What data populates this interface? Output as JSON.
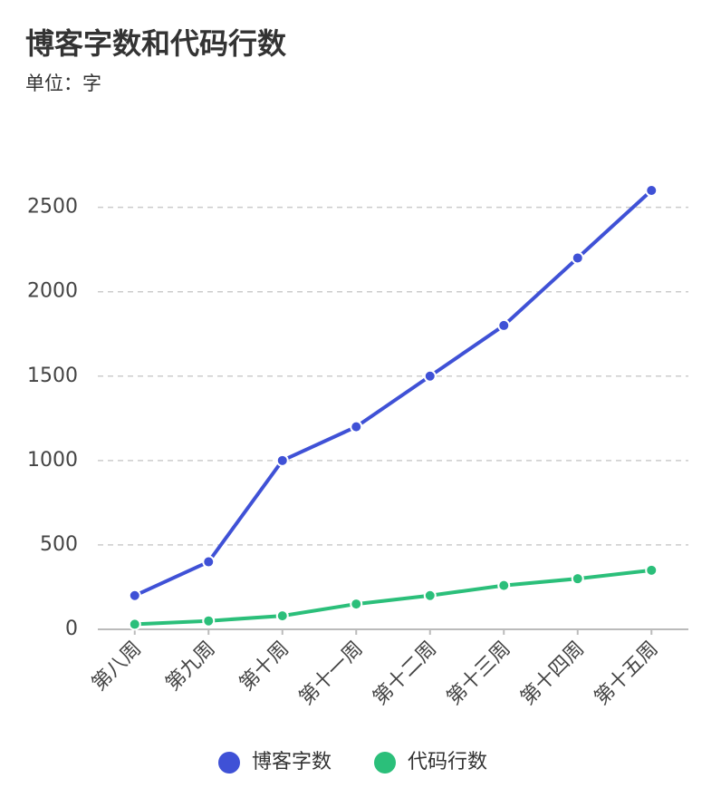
{
  "chart_data": {
    "type": "line",
    "title": "博客字数和代码行数",
    "subtitle": "单位：字",
    "categories": [
      "第八周",
      "第九周",
      "第十周",
      "第十一周",
      "第十二周",
      "第十三周",
      "第十四周",
      "第十五周"
    ],
    "series": [
      {
        "name": "博客字数",
        "color": "#3f51d6",
        "values": [
          200,
          400,
          1000,
          1200,
          1500,
          1800,
          2200,
          2600
        ]
      },
      {
        "name": "代码行数",
        "color": "#2bbf7a",
        "values": [
          30,
          50,
          80,
          150,
          200,
          260,
          300,
          350
        ]
      }
    ],
    "ylim": [
      0,
      2600
    ],
    "yticks": [
      0,
      500,
      1000,
      1500,
      2000,
      2500
    ],
    "grid": true
  }
}
